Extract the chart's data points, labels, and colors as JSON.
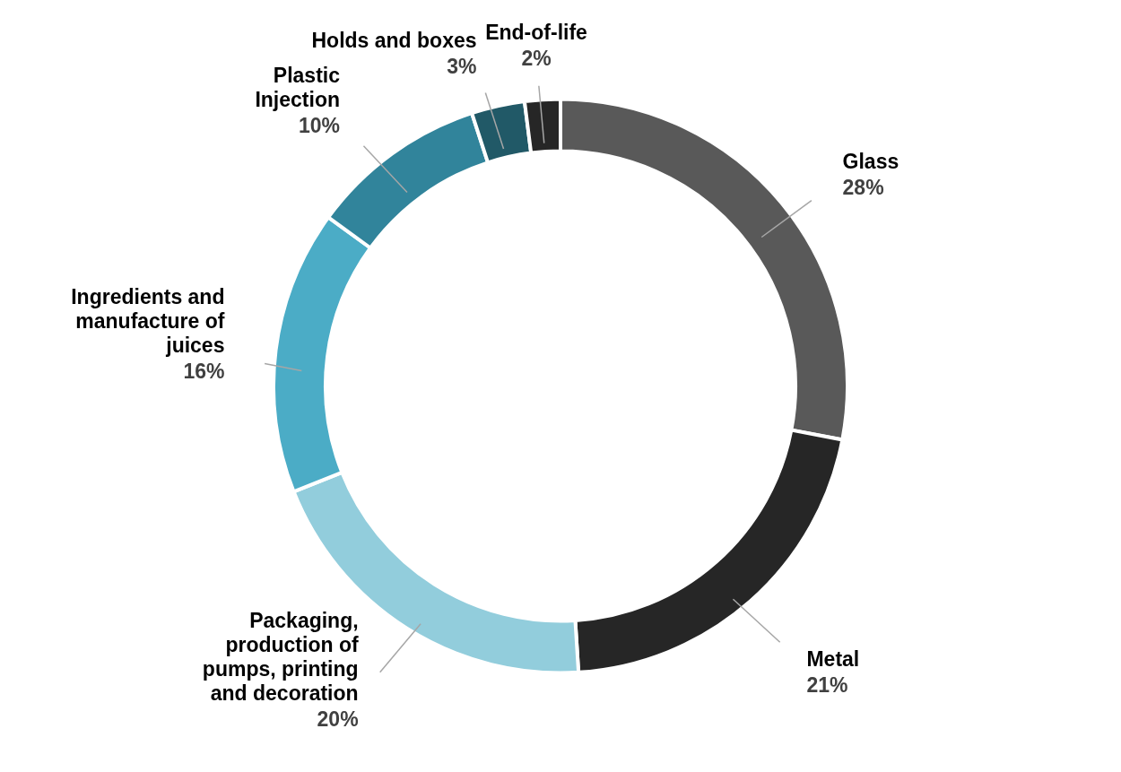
{
  "chart_data": {
    "type": "donut",
    "categories": [
      "Glass",
      "Metal",
      "Packaging, production of pumps, printing and decoration",
      "Ingredients and manufacture of juices",
      "Plastic Injection",
      "Holds and boxes",
      "End-of-life"
    ],
    "values": [
      28,
      21,
      20,
      16,
      10,
      3,
      2
    ],
    "value_labels": [
      "28%",
      "21%",
      "20%",
      "16%",
      "10%",
      "3%",
      "2%"
    ],
    "colors": [
      "#595959",
      "#262626",
      "#92cddc",
      "#4bacc6",
      "#31849b",
      "#215967",
      "#262626"
    ]
  }
}
